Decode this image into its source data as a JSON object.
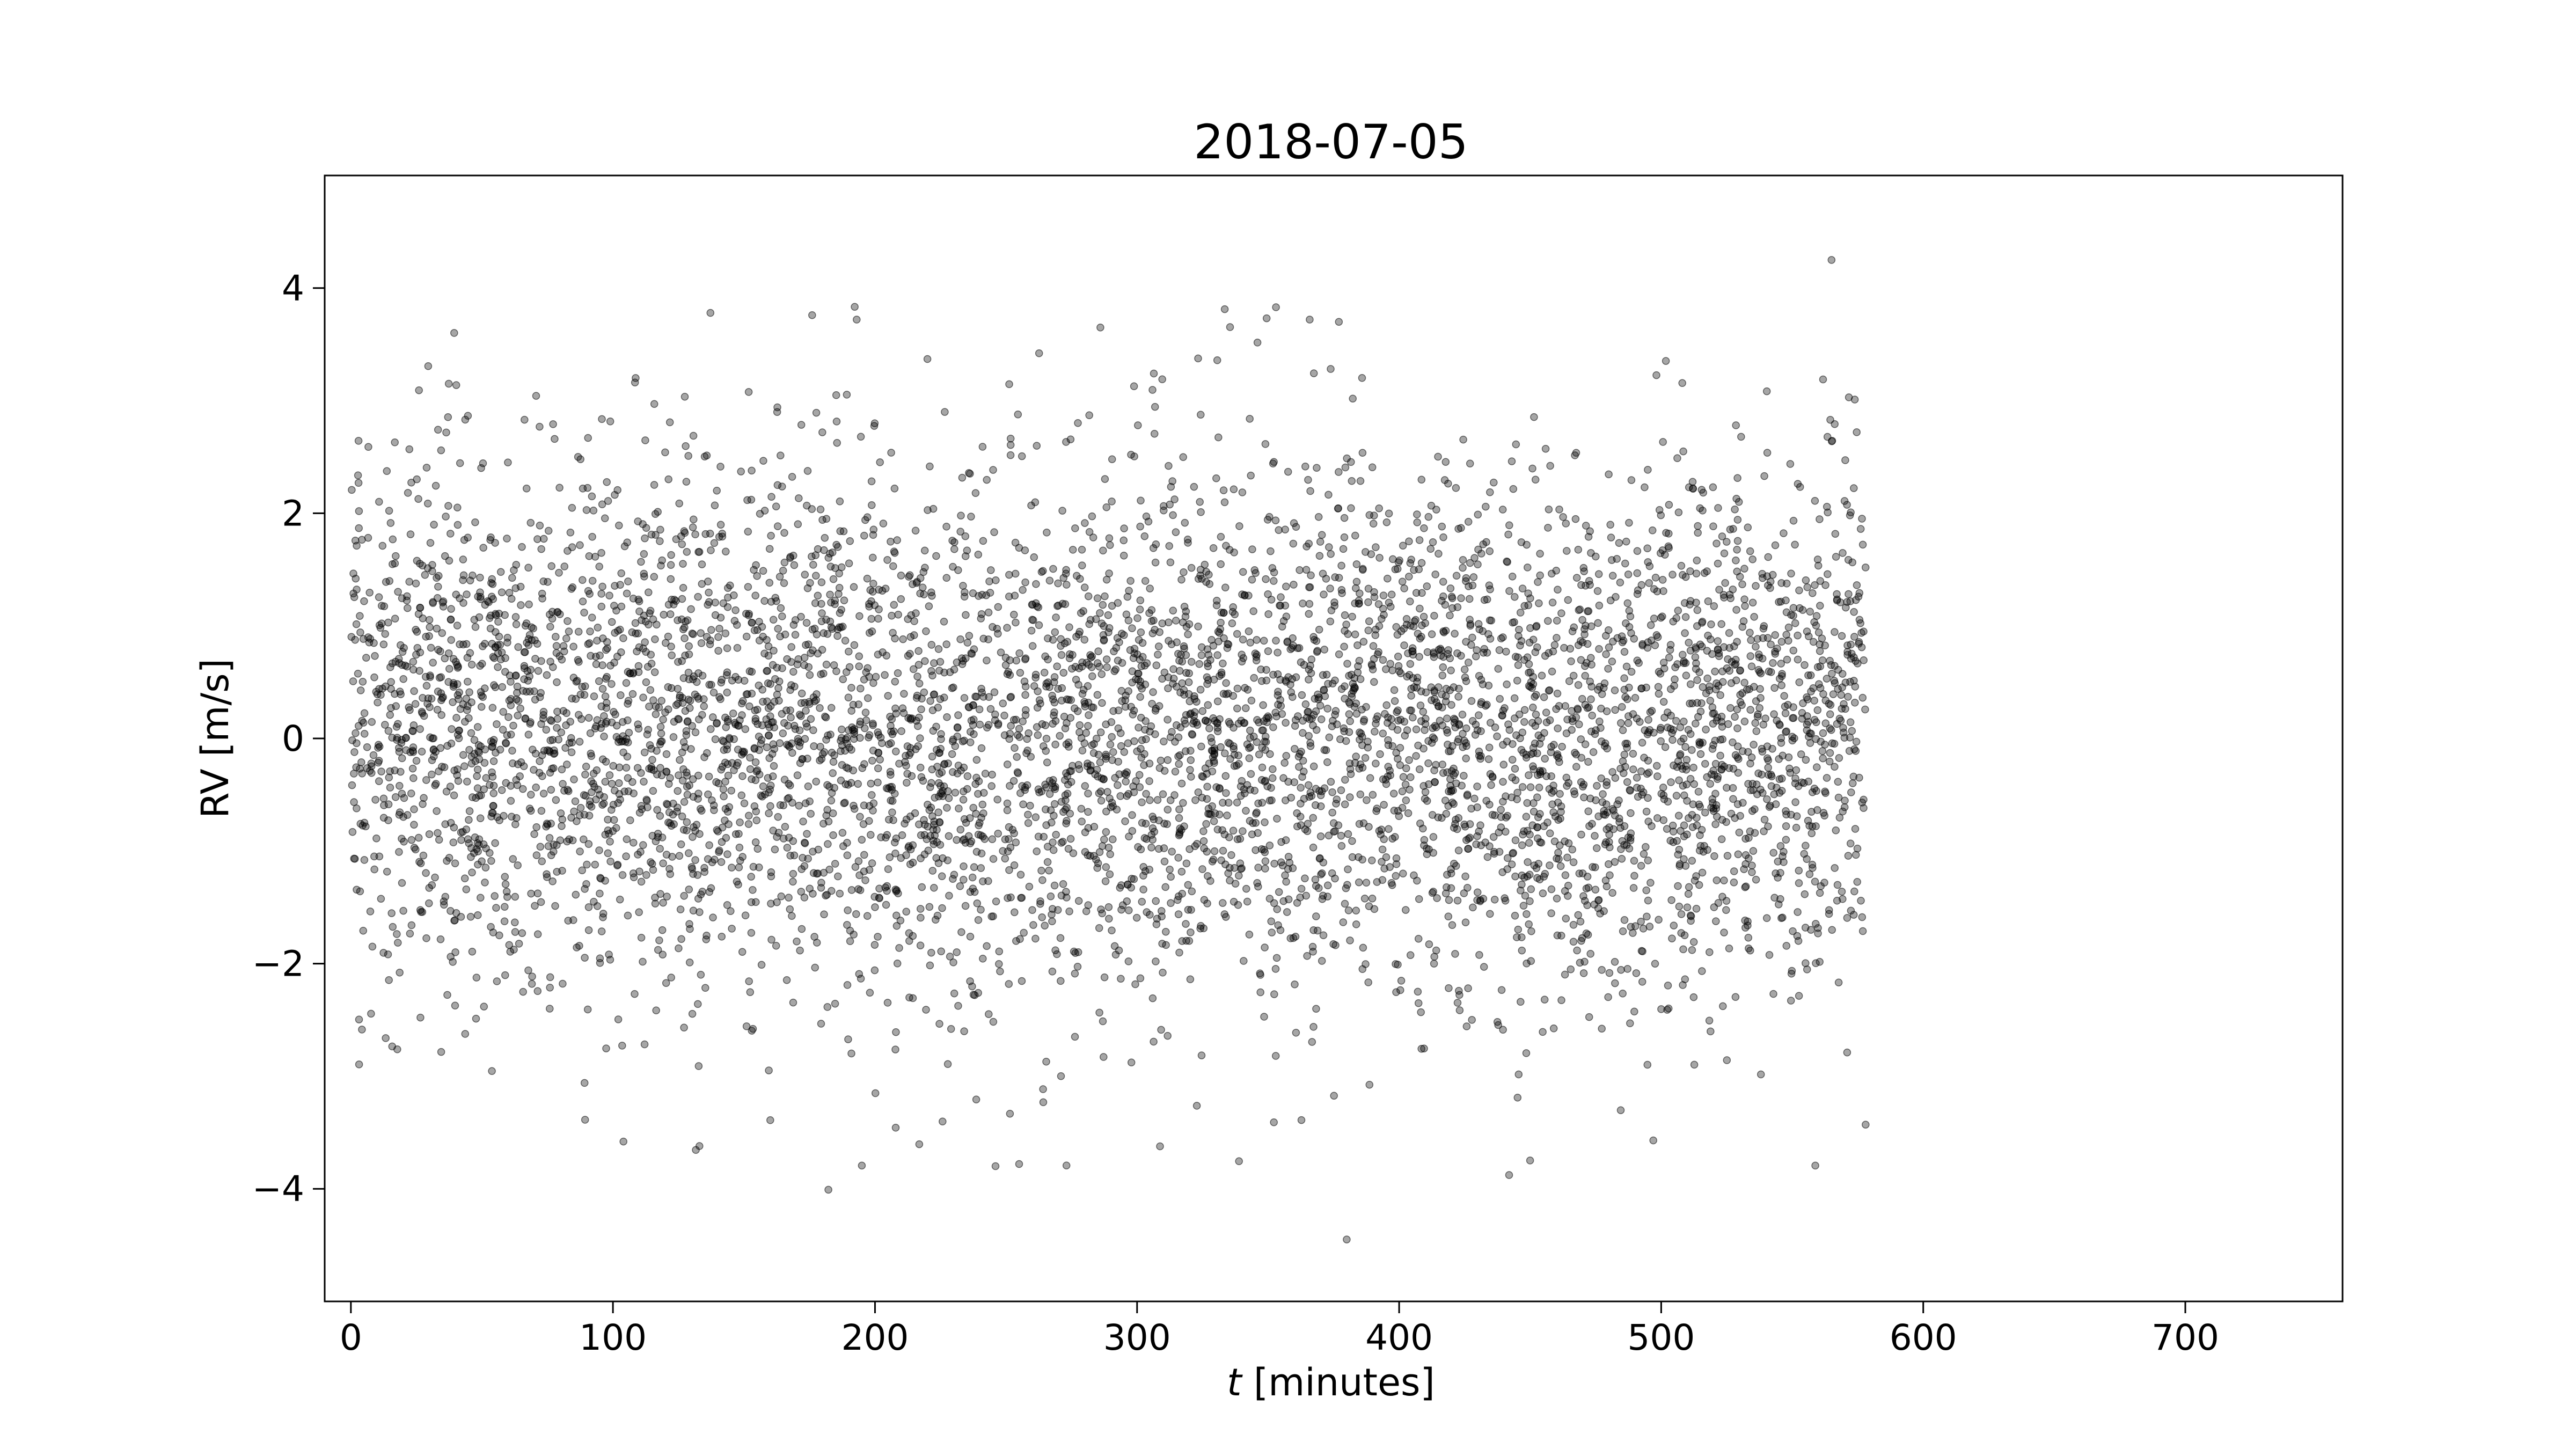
{
  "chart_data": {
    "type": "scatter",
    "title": "2018-07-05",
    "xlabel_var": "t",
    "xlabel_unit": " [minutes]",
    "ylabel": "RV [m/s]",
    "xlim": [
      -10,
      760
    ],
    "ylim": [
      -5,
      5
    ],
    "xticks": [
      0,
      100,
      200,
      300,
      400,
      500,
      600,
      700
    ],
    "yticks": [
      -4,
      -2,
      0,
      2,
      4
    ],
    "ytick_labels": [
      "−4",
      "−2",
      "0",
      "2",
      "4"
    ],
    "grid": false,
    "legend": "none",
    "marker": {
      "color": "#000000",
      "alpha": 0.35,
      "shape": "circle"
    },
    "x_range": [
      0,
      578
    ],
    "approx_point_count": 6000,
    "noise_std": 1.15,
    "baseline_trend": [
      {
        "x": 0,
        "y": 0.1
      },
      {
        "x": 60,
        "y": 0.2
      },
      {
        "x": 120,
        "y": 0.1
      },
      {
        "x": 200,
        "y": 0.0
      },
      {
        "x": 240,
        "y": -0.1
      },
      {
        "x": 300,
        "y": 0.05
      },
      {
        "x": 360,
        "y": 0.0
      },
      {
        "x": 400,
        "y": 0.1
      },
      {
        "x": 450,
        "y": -0.1
      },
      {
        "x": 500,
        "y": 0.0
      },
      {
        "x": 578,
        "y": 0.2
      }
    ],
    "notable_points": [
      {
        "x": 565,
        "y": 4.25
      },
      {
        "x": 353,
        "y": 3.83
      },
      {
        "x": 176,
        "y": 3.76
      },
      {
        "x": 193,
        "y": 3.72
      },
      {
        "x": 377,
        "y": 3.7
      },
      {
        "x": 286,
        "y": 3.65
      },
      {
        "x": 380,
        "y": -4.45
      },
      {
        "x": 255,
        "y": -3.78
      },
      {
        "x": 133,
        "y": -3.62
      },
      {
        "x": 104,
        "y": -3.58
      },
      {
        "x": 497,
        "y": -3.57
      },
      {
        "x": 578,
        "y": -3.43
      }
    ]
  }
}
